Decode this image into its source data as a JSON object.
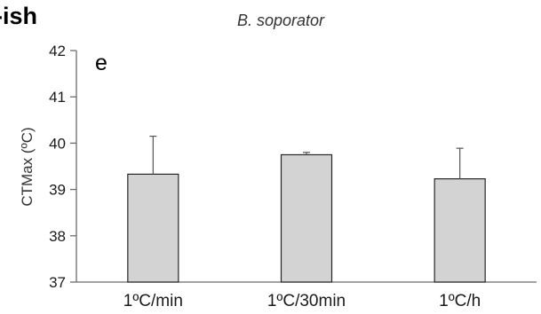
{
  "corner_text": "-ish",
  "chart_data": {
    "type": "bar",
    "title": "B. soporator",
    "panel_label": "e",
    "xlabel": "",
    "ylabel": "CTMax (ºC)",
    "categories": [
      "1ºC/min",
      "1ºC/30min",
      "1ºC/h"
    ],
    "series": [
      {
        "values": [
          39.33,
          39.75,
          39.23
        ],
        "error_plus": [
          0.82,
          0.05,
          0.66
        ]
      }
    ],
    "ylim": [
      37,
      42
    ],
    "yticks": [
      37,
      38,
      39,
      40,
      41,
      42
    ],
    "grid": false,
    "legend": "none",
    "bar_color": "#d3d3d3",
    "bar_edge_color": "#262626",
    "axis_color": "#6b6b6b"
  }
}
